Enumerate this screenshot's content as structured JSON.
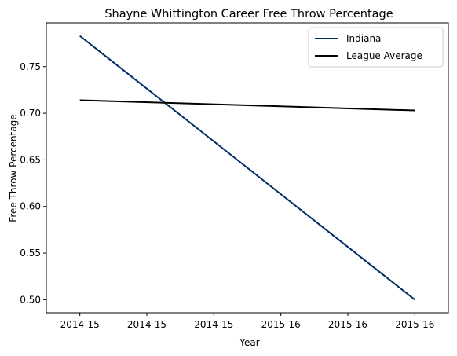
{
  "chart_data": {
    "type": "line",
    "title": "Shayne Whittington Career Free Throw Percentage",
    "xlabel": "Year",
    "ylabel": "Free Throw Percentage",
    "x_tick_labels": [
      "2014-15",
      "2014-15",
      "2014-15",
      "2015-16",
      "2015-16",
      "2015-16"
    ],
    "x_range": [
      -0.1,
      1.1
    ],
    "x_ticks": [
      0,
      0.2,
      0.4,
      0.6,
      0.8,
      1.0
    ],
    "y_range": [
      0.486,
      0.797
    ],
    "y_ticks": [
      0.5,
      0.55,
      0.6,
      0.65,
      0.7,
      0.75
    ],
    "y_tick_labels": [
      "0.50",
      "0.55",
      "0.60",
      "0.65",
      "0.70",
      "0.75"
    ],
    "legend_position": "top-right",
    "series": [
      {
        "name": "Indiana",
        "color": "#002d62",
        "x": [
          0,
          1
        ],
        "values": [
          0.783,
          0.5
        ]
      },
      {
        "name": "League Average",
        "color": "#000000",
        "x": [
          0,
          1
        ],
        "values": [
          0.714,
          0.703
        ]
      }
    ]
  }
}
